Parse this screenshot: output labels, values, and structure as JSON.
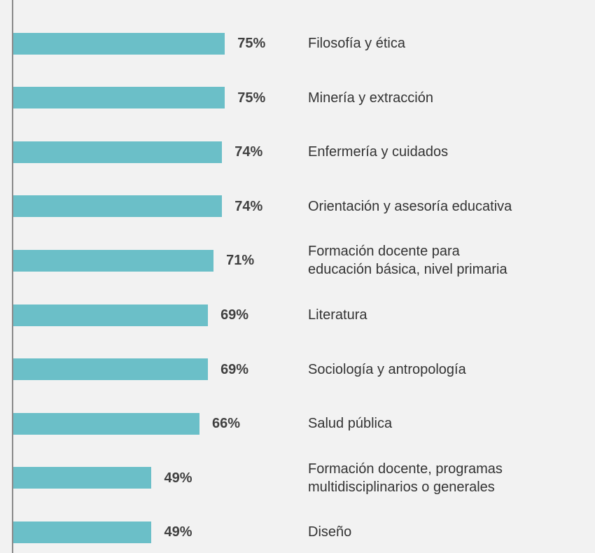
{
  "chart_data": {
    "type": "bar",
    "orientation": "horizontal",
    "color": "#6bbfc8",
    "categories": [
      "Filosofía y ética",
      "Minería y extracción",
      "Enfermería y cuidados",
      "Orientación y asesoría educativa",
      "Formación docente para\neducación básica, nivel primaria",
      "Literatura",
      "Sociología y antropología",
      "Salud pública",
      "Formación docente, programas\nmultidisciplinarios o generales",
      "Diseño"
    ],
    "values": [
      75,
      75,
      74,
      74,
      71,
      69,
      69,
      66,
      49,
      49
    ],
    "value_labels": [
      "75%",
      "75%",
      "74%",
      "74%",
      "71%",
      "69%",
      "69%",
      "66%",
      "49%",
      "49%"
    ]
  }
}
